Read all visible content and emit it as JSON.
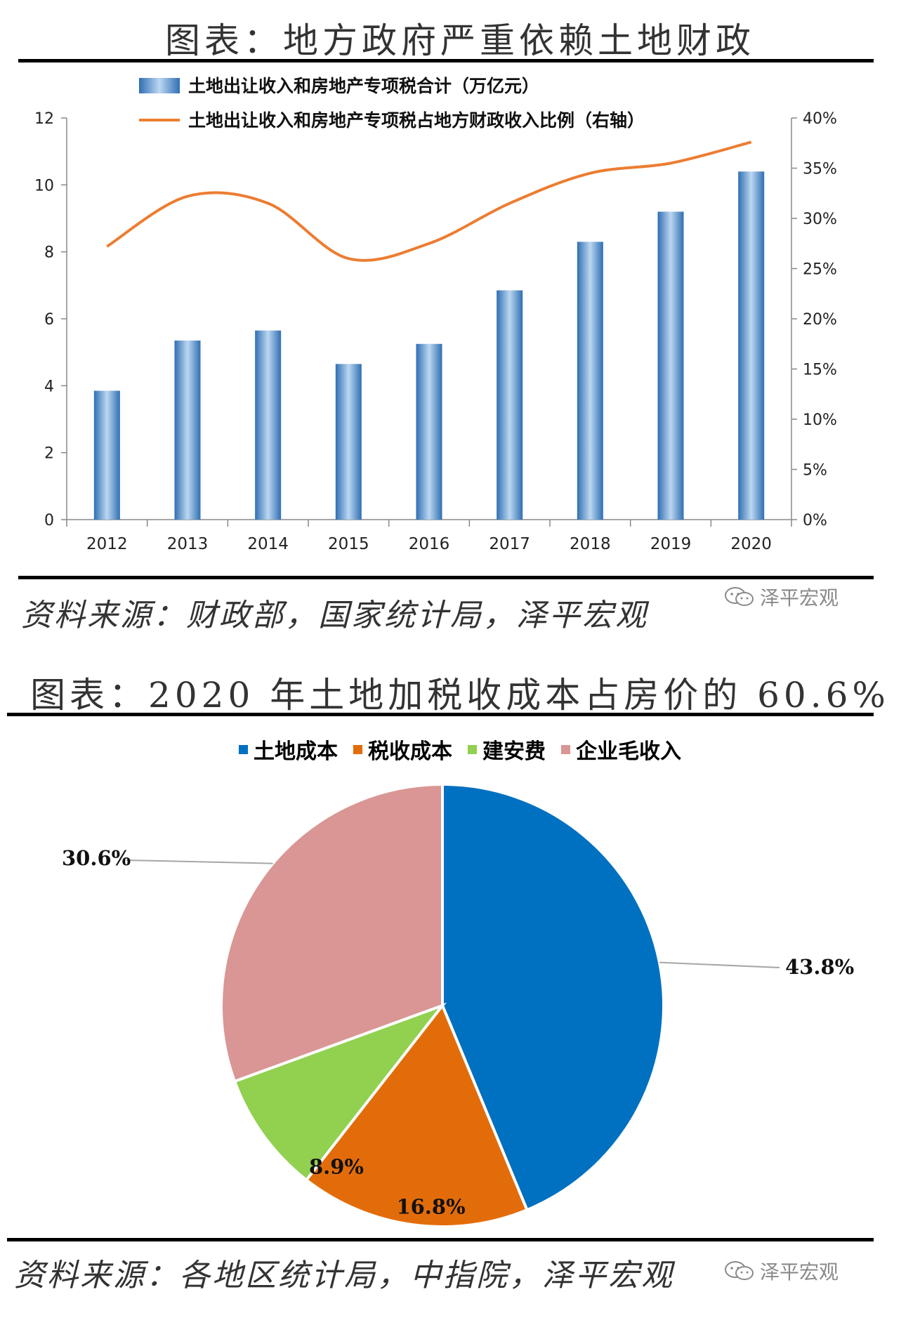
{
  "chart1": {
    "title": "图表：地方政府严重依赖土地财政",
    "source": "资料来源：财政部，国家统计局，泽平宏观",
    "watermark": "泽平宏观"
  },
  "chart2": {
    "title": "图表：2020 年土地加税收成本占房价的 60.6%",
    "source": "资料来源：各地区统计局，中指院，泽平宏观",
    "watermark": "泽平宏观"
  },
  "chart_data": [
    {
      "type": "bar",
      "categories": [
        "2012",
        "2013",
        "2014",
        "2015",
        "2016",
        "2017",
        "2018",
        "2019",
        "2020"
      ],
      "series": [
        {
          "name": "土地出让收入和房地产专项税合计（万亿元）",
          "type": "bar",
          "axis": "left",
          "values": [
            3.85,
            5.35,
            5.65,
            4.65,
            5.25,
            6.85,
            8.3,
            9.2,
            10.4
          ],
          "color": "#3a7fc0"
        },
        {
          "name": "土地出让收入和房地产专项税占地方财政收入比例（右轴）",
          "type": "line",
          "axis": "right",
          "values": [
            27.2,
            32.2,
            31.5,
            26.0,
            27.5,
            31.5,
            34.5,
            35.5,
            37.6
          ],
          "color": "#ec7d31"
        }
      ],
      "ylim": [
        0,
        12
      ],
      "yticks": [
        "0",
        "2",
        "4",
        "6",
        "8",
        "10",
        "12"
      ],
      "y2lim": [
        0,
        40
      ],
      "y2ticks": [
        "0%",
        "5%",
        "10%",
        "15%",
        "20%",
        "25%",
        "30%",
        "35%",
        "40%"
      ],
      "legend": "top-left",
      "grid": false
    },
    {
      "type": "pie",
      "labels": [
        "土地成本",
        "税收成本",
        "建安费",
        "企业毛收入"
      ],
      "values": [
        43.8,
        16.8,
        8.9,
        30.6
      ],
      "value_labels": [
        "43.8%",
        "16.8%",
        "8.9%",
        "30.6%"
      ],
      "colors": [
        "#0070c0",
        "#e36c0a",
        "#92d050",
        "#d99694"
      ],
      "legend": "top"
    }
  ]
}
